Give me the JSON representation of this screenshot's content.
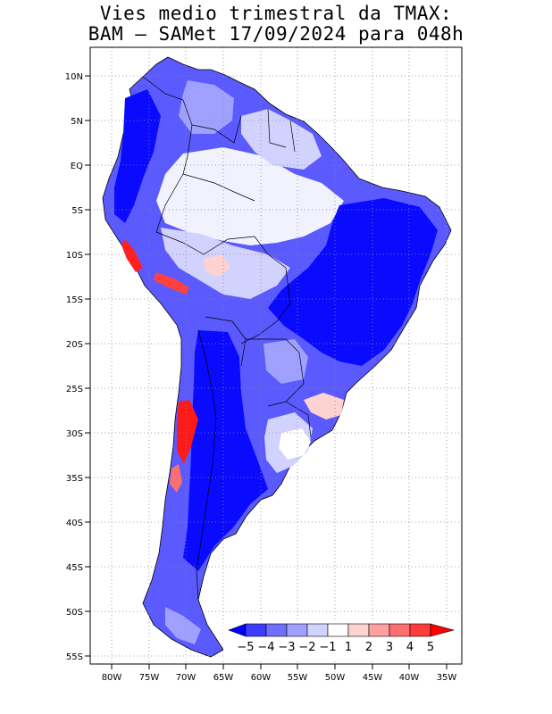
{
  "title_line1": "Vies medio trimestral da TMAX:",
  "title_line2": "BAM – SAMet 17/09/2024  para 048h",
  "lat_ticks": [
    "10N",
    "5N",
    "EQ",
    "5S",
    "10S",
    "15S",
    "20S",
    "25S",
    "30S",
    "35S",
    "40S",
    "45S",
    "50S",
    "55S"
  ],
  "lon_ticks": [
    "80W",
    "75W",
    "70W",
    "65W",
    "60W",
    "55W",
    "50W",
    "45W",
    "40W",
    "35W"
  ],
  "colorbar": {
    "labels": [
      "−5",
      "−4",
      "−3",
      "−2",
      "−1",
      "1",
      "2",
      "3",
      "4",
      "5"
    ],
    "colors": [
      "#0000ff",
      "#3c3cff",
      "#6e6eff",
      "#a0a0ff",
      "#d2d2ff",
      "#ffffff",
      "#ffd2d2",
      "#ffa0a0",
      "#ff6e6e",
      "#ff3c3c",
      "#ff0000"
    ]
  },
  "map": {
    "region": "South America",
    "lat_range": [
      -55.5,
      12.5
    ],
    "lon_range": [
      -83,
      -34.5
    ],
    "grid": "dotted"
  }
}
